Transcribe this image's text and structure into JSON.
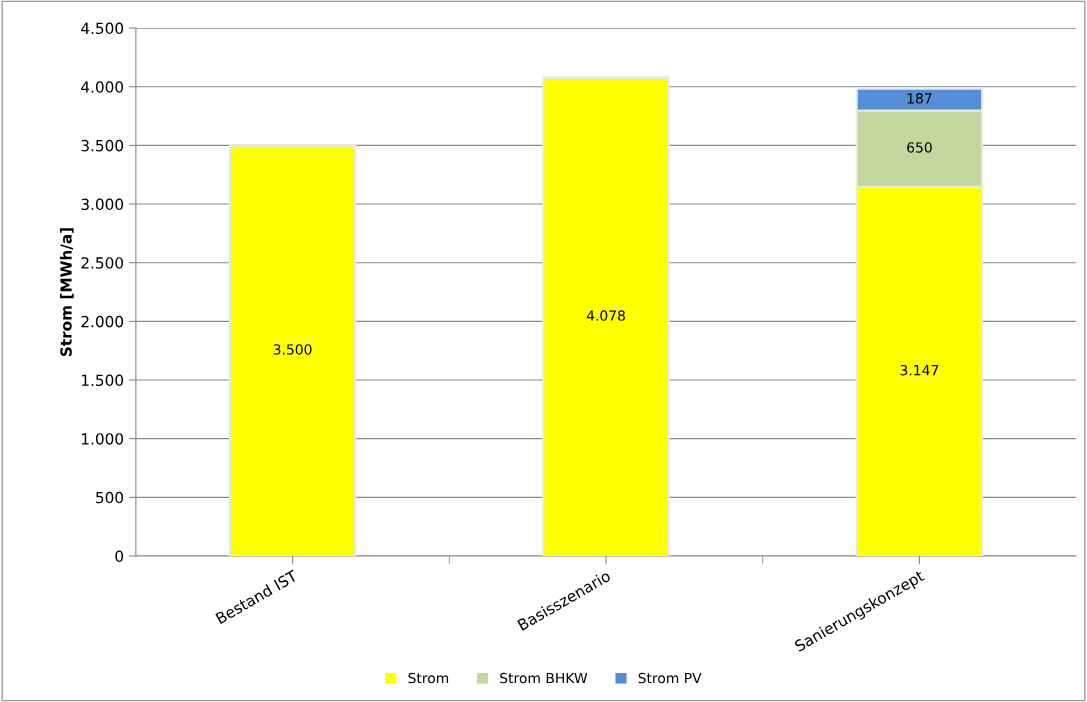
{
  "chart_data": {
    "type": "bar",
    "stacked": true,
    "ylabel": "Strom [MWh/a]",
    "categories": [
      "Bestand IST",
      "Basisszenario",
      "Sanierungskonzept"
    ],
    "series": [
      {
        "name": "Strom",
        "color": "#ffff00",
        "values": [
          3500,
          4078,
          3147
        ],
        "value_labels": [
          "3.500",
          "4.078",
          "3.147"
        ]
      },
      {
        "name": "Strom BHKW",
        "color": "#c3d69b",
        "values": [
          null,
          null,
          650
        ],
        "value_labels": [
          null,
          null,
          "650"
        ]
      },
      {
        "name": "Strom PV",
        "color": "#558ed5",
        "values": [
          null,
          null,
          187
        ],
        "value_labels": [
          null,
          null,
          "187"
        ]
      }
    ],
    "ylim": [
      0,
      4500
    ],
    "yticks": [
      0,
      500,
      {
        "value": 1000,
        "label": "1.000"
      },
      {
        "value": 1500,
        "label": "1.500"
      },
      {
        "value": 2000,
        "label": "2.000"
      },
      {
        "value": 2500,
        "label": "2.500"
      },
      {
        "value": 3000,
        "label": "3.000"
      },
      {
        "value": 3500,
        "label": "3.500"
      },
      {
        "value": 4000,
        "label": "4.000"
      },
      {
        "value": 4500,
        "label": "4.500"
      }
    ],
    "grid": "y",
    "legend": "bottom"
  }
}
